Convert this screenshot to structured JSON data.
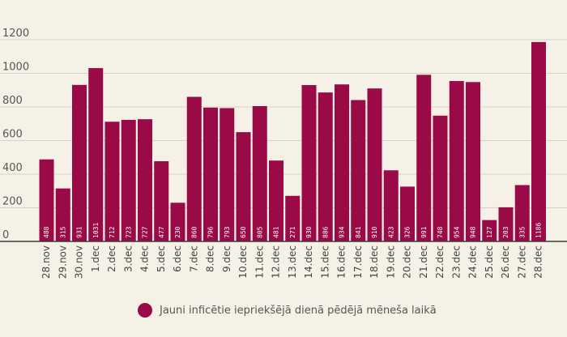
{
  "chart_data": {
    "type": "bar",
    "categories": [
      "28.nov",
      "29.nov",
      "30.nov",
      "1.dec",
      "2.dec",
      "3.dec",
      "4.dec",
      "5.dec",
      "6.dec",
      "7.dec",
      "8.dec",
      "9.dec",
      "10.dec",
      "11.dec",
      "12.dec",
      "13.dec",
      "14.dec",
      "15.dec",
      "16.dec",
      "17.dec",
      "18.dec",
      "19.dec",
      "20.dec",
      "21.dec",
      "22.dec",
      "23.dec",
      "24.dec",
      "25.dec",
      "26.dec",
      "27.dec",
      "28.dec"
    ],
    "values": [
      488,
      315,
      931,
      1031,
      712,
      723,
      727,
      477,
      230,
      860,
      796,
      793,
      650,
      805,
      481,
      271,
      930,
      886,
      934,
      841,
      910,
      423,
      326,
      991,
      748,
      954,
      948,
      127,
      203,
      335,
      1186
    ],
    "series": [
      {
        "name": "Jauni inficētie iepriekšējā dienā pēdējā mēneša laikā"
      }
    ],
    "y_ticks": [
      "0",
      "200",
      "400",
      "600",
      "800",
      "1000",
      "1200"
    ],
    "ylim": [
      0,
      1250
    ],
    "grid": true,
    "data_labels": true,
    "legend": "bottom",
    "bar_color": "#990a47"
  }
}
